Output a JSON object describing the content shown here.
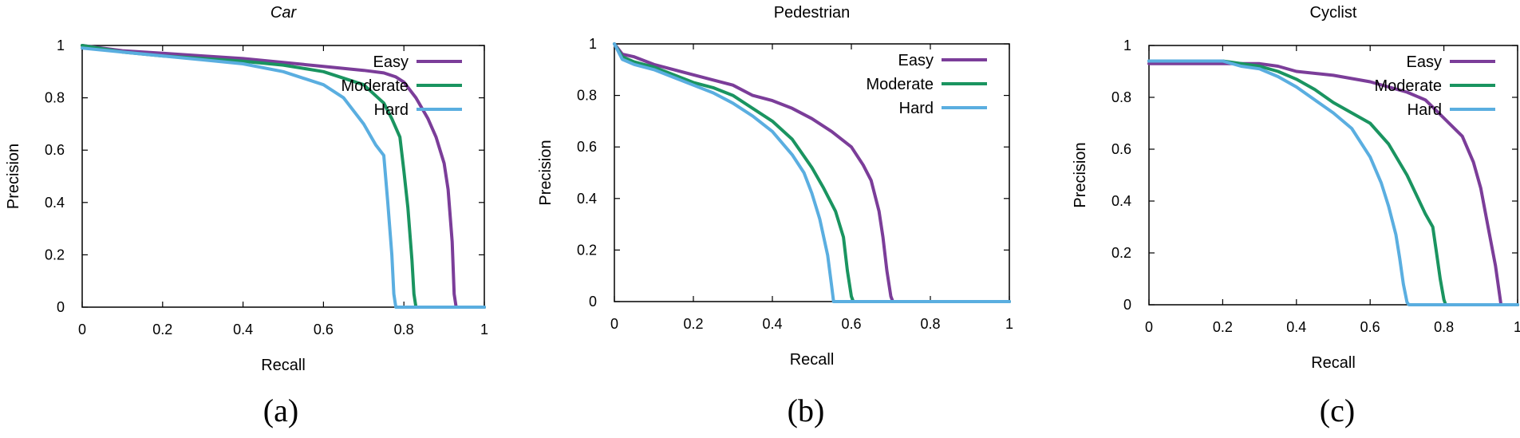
{
  "colors": {
    "easy": "#7b3d99",
    "moderate": "#1a9460",
    "hard": "#5aaee0"
  },
  "captions": [
    "(a)",
    "(b)",
    "(c)"
  ],
  "chart_data": [
    {
      "type": "line",
      "title": "Car",
      "xlabel": "Recall",
      "ylabel": "Precision",
      "xlim": [
        0,
        1
      ],
      "ylim": [
        0,
        1
      ],
      "xticks": [
        "0",
        "0.2",
        "0.4",
        "0.6",
        "0.8",
        "1"
      ],
      "yticks": [
        "0",
        "0.2",
        "0.4",
        "0.6",
        "0.8",
        "1"
      ],
      "legend": "top-right",
      "series": [
        {
          "name": "Easy",
          "x": [
            0,
            0.1,
            0.2,
            0.3,
            0.4,
            0.5,
            0.6,
            0.7,
            0.75,
            0.78,
            0.8,
            0.83,
            0.86,
            0.88,
            0.9,
            0.91,
            0.92,
            0.925,
            0.93,
            1.0
          ],
          "y": [
            1.0,
            0.98,
            0.97,
            0.96,
            0.95,
            0.935,
            0.92,
            0.905,
            0.895,
            0.88,
            0.86,
            0.8,
            0.72,
            0.65,
            0.55,
            0.45,
            0.25,
            0.05,
            0.0,
            0.0
          ]
        },
        {
          "name": "Moderate",
          "x": [
            0,
            0.1,
            0.2,
            0.3,
            0.4,
            0.5,
            0.6,
            0.7,
            0.75,
            0.77,
            0.79,
            0.8,
            0.81,
            0.82,
            0.825,
            0.83,
            1.0
          ],
          "y": [
            1.0,
            0.975,
            0.96,
            0.95,
            0.94,
            0.925,
            0.9,
            0.85,
            0.78,
            0.72,
            0.65,
            0.52,
            0.38,
            0.18,
            0.05,
            0.0,
            0.0
          ]
        },
        {
          "name": "Hard",
          "x": [
            0,
            0.1,
            0.2,
            0.3,
            0.4,
            0.5,
            0.6,
            0.65,
            0.7,
            0.73,
            0.75,
            0.76,
            0.77,
            0.775,
            0.78,
            1.0
          ],
          "y": [
            0.99,
            0.975,
            0.96,
            0.945,
            0.93,
            0.9,
            0.85,
            0.8,
            0.7,
            0.62,
            0.58,
            0.4,
            0.2,
            0.05,
            0.0,
            0.0
          ]
        }
      ]
    },
    {
      "type": "line",
      "title": "Pedestrian",
      "xlabel": "Recall",
      "ylabel": "Precision",
      "xlim": [
        0,
        1
      ],
      "ylim": [
        0,
        1
      ],
      "xticks": [
        "0",
        "0.2",
        "0.4",
        "0.6",
        "0.8",
        "1"
      ],
      "yticks": [
        "0",
        "0.2",
        "0.4",
        "0.6",
        "0.8",
        "1"
      ],
      "legend": "top-right",
      "series": [
        {
          "name": "Easy",
          "x": [
            0,
            0.02,
            0.05,
            0.1,
            0.15,
            0.2,
            0.3,
            0.35,
            0.4,
            0.45,
            0.5,
            0.55,
            0.6,
            0.63,
            0.65,
            0.67,
            0.68,
            0.69,
            0.7,
            0.705,
            1.0
          ],
          "y": [
            1.0,
            0.96,
            0.95,
            0.92,
            0.9,
            0.88,
            0.84,
            0.8,
            0.78,
            0.75,
            0.71,
            0.66,
            0.6,
            0.53,
            0.47,
            0.35,
            0.25,
            0.12,
            0.02,
            0.0,
            0.0
          ]
        },
        {
          "name": "Moderate",
          "x": [
            0,
            0.02,
            0.05,
            0.1,
            0.15,
            0.2,
            0.25,
            0.3,
            0.35,
            0.4,
            0.45,
            0.5,
            0.53,
            0.56,
            0.58,
            0.59,
            0.6,
            0.605,
            1.0
          ],
          "y": [
            1.0,
            0.95,
            0.93,
            0.91,
            0.88,
            0.85,
            0.83,
            0.8,
            0.75,
            0.7,
            0.63,
            0.52,
            0.44,
            0.35,
            0.25,
            0.12,
            0.02,
            0.0,
            0.0
          ]
        },
        {
          "name": "Hard",
          "x": [
            0,
            0.02,
            0.05,
            0.1,
            0.15,
            0.2,
            0.25,
            0.3,
            0.35,
            0.4,
            0.45,
            0.48,
            0.5,
            0.52,
            0.54,
            0.55,
            0.555,
            1.0
          ],
          "y": [
            1.0,
            0.94,
            0.92,
            0.9,
            0.87,
            0.84,
            0.81,
            0.77,
            0.72,
            0.66,
            0.57,
            0.5,
            0.42,
            0.32,
            0.18,
            0.06,
            0.0,
            0.0
          ]
        }
      ]
    },
    {
      "type": "line",
      "title": "Cyclist",
      "xlabel": "Recall",
      "ylabel": "Precision",
      "xlim": [
        0,
        1
      ],
      "ylim": [
        0,
        1
      ],
      "xticks": [
        "0",
        "0.2",
        "0.4",
        "0.6",
        "0.8",
        "1"
      ],
      "yticks": [
        "0",
        "0.2",
        "0.4",
        "0.6",
        "0.8",
        "1"
      ],
      "legend": "top-right",
      "series": [
        {
          "name": "Easy",
          "x": [
            0,
            0.1,
            0.2,
            0.3,
            0.35,
            0.4,
            0.5,
            0.6,
            0.7,
            0.75,
            0.8,
            0.85,
            0.88,
            0.9,
            0.92,
            0.94,
            0.95,
            0.955,
            0.96,
            1.0
          ],
          "y": [
            0.93,
            0.93,
            0.93,
            0.93,
            0.92,
            0.9,
            0.885,
            0.86,
            0.82,
            0.79,
            0.72,
            0.65,
            0.55,
            0.45,
            0.3,
            0.15,
            0.05,
            0.0,
            0.0,
            0.0
          ]
        },
        {
          "name": "Moderate",
          "x": [
            0,
            0.1,
            0.2,
            0.3,
            0.35,
            0.4,
            0.45,
            0.5,
            0.55,
            0.6,
            0.65,
            0.7,
            0.75,
            0.77,
            0.78,
            0.79,
            0.8,
            0.805,
            1.0
          ],
          "y": [
            0.94,
            0.94,
            0.94,
            0.92,
            0.9,
            0.87,
            0.83,
            0.78,
            0.74,
            0.7,
            0.62,
            0.5,
            0.35,
            0.3,
            0.2,
            0.1,
            0.02,
            0.0,
            0.0
          ]
        },
        {
          "name": "Hard",
          "x": [
            0,
            0.1,
            0.2,
            0.25,
            0.3,
            0.35,
            0.4,
            0.45,
            0.5,
            0.55,
            0.6,
            0.63,
            0.65,
            0.67,
            0.68,
            0.69,
            0.7,
            0.705,
            1.0
          ],
          "y": [
            0.94,
            0.94,
            0.94,
            0.92,
            0.91,
            0.88,
            0.84,
            0.79,
            0.74,
            0.68,
            0.57,
            0.47,
            0.38,
            0.27,
            0.18,
            0.08,
            0.01,
            0.0,
            0.0
          ]
        }
      ]
    }
  ]
}
